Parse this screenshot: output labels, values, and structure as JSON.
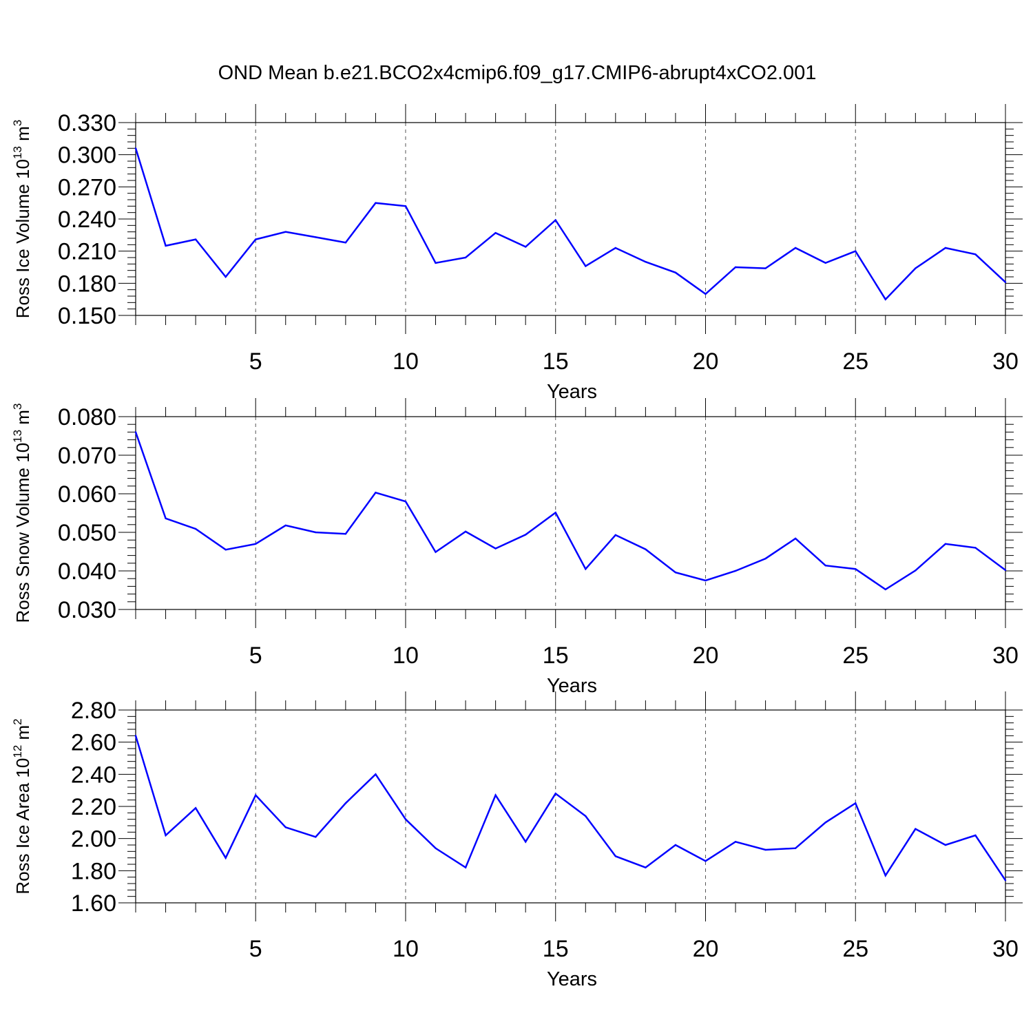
{
  "title": "OND Mean b.e21.BCO2x4cmip6.f09_g17.CMIP6-abrupt4xCO2.001",
  "chart_data": [
    {
      "type": "line",
      "title": "",
      "xlabel": "Years",
      "ylabel": {
        "text": "Ross Ice Volume 10",
        "exponent": "13",
        "unit": " m",
        "unit_exponent": "3"
      },
      "xlim": [
        1,
        30
      ],
      "ylim": [
        0.15,
        0.33
      ],
      "xticks": [
        "5",
        "10",
        "15",
        "20",
        "25",
        "30"
      ],
      "yticks": [
        "0.150",
        "0.180",
        "0.210",
        "0.240",
        "0.270",
        "0.300",
        "0.330"
      ],
      "grid": "vertical dashed at major x ticks",
      "color": "#0000ff",
      "x": [
        1,
        2,
        3,
        4,
        5,
        6,
        7,
        8,
        9,
        10,
        11,
        12,
        13,
        14,
        15,
        16,
        17,
        18,
        19,
        20,
        21,
        22,
        23,
        24,
        25,
        26,
        27,
        28,
        29,
        30
      ],
      "y": [
        0.306,
        0.215,
        0.221,
        0.186,
        0.221,
        0.228,
        0.223,
        0.218,
        0.255,
        0.252,
        0.199,
        0.204,
        0.227,
        0.214,
        0.239,
        0.196,
        0.213,
        0.2,
        0.19,
        0.17,
        0.195,
        0.194,
        0.213,
        0.199,
        0.21,
        0.165,
        0.194,
        0.213,
        0.207,
        0.181
      ]
    },
    {
      "type": "line",
      "title": "",
      "xlabel": "Years",
      "ylabel": {
        "text": "Ross Snow Volume 10",
        "exponent": "13",
        "unit": " m",
        "unit_exponent": "3"
      },
      "xlim": [
        1,
        30
      ],
      "ylim": [
        0.03,
        0.08
      ],
      "xticks": [
        "5",
        "10",
        "15",
        "20",
        "25",
        "30"
      ],
      "yticks": [
        "0.030",
        "0.040",
        "0.050",
        "0.060",
        "0.070",
        "0.080"
      ],
      "grid": "vertical dashed at major x ticks",
      "color": "#0000ff",
      "x": [
        1,
        2,
        3,
        4,
        5,
        6,
        7,
        8,
        9,
        10,
        11,
        12,
        13,
        14,
        15,
        16,
        17,
        18,
        19,
        20,
        21,
        22,
        23,
        24,
        25,
        26,
        27,
        28,
        29,
        30
      ],
      "y": [
        0.076,
        0.0536,
        0.0509,
        0.0455,
        0.047,
        0.0518,
        0.05,
        0.0496,
        0.0603,
        0.058,
        0.0449,
        0.0502,
        0.0458,
        0.0494,
        0.0551,
        0.0405,
        0.0493,
        0.0456,
        0.0396,
        0.0375,
        0.04,
        0.0432,
        0.0484,
        0.0414,
        0.0405,
        0.0352,
        0.0401,
        0.047,
        0.046,
        0.0402
      ]
    },
    {
      "type": "line",
      "title": "",
      "xlabel": "Years",
      "ylabel": {
        "text": "Ross Ice Area 10",
        "exponent": "12",
        "unit": " m",
        "unit_exponent": "2"
      },
      "xlim": [
        1,
        30
      ],
      "ylim": [
        1.6,
        2.8
      ],
      "xticks": [
        "5",
        "10",
        "15",
        "20",
        "25",
        "30"
      ],
      "yticks": [
        "1.60",
        "1.80",
        "2.00",
        "2.20",
        "2.40",
        "2.60",
        "2.80"
      ],
      "grid": "vertical dashed at major x ticks",
      "color": "#0000ff",
      "x": [
        1,
        2,
        3,
        4,
        5,
        6,
        7,
        8,
        9,
        10,
        11,
        12,
        13,
        14,
        15,
        16,
        17,
        18,
        19,
        20,
        21,
        22,
        23,
        24,
        25,
        26,
        27,
        28,
        29,
        30
      ],
      "y": [
        2.64,
        2.02,
        2.19,
        1.88,
        2.27,
        2.07,
        2.01,
        2.22,
        2.4,
        2.12,
        1.94,
        1.82,
        2.27,
        1.98,
        2.28,
        2.14,
        1.89,
        1.82,
        1.96,
        1.86,
        1.98,
        1.93,
        1.94,
        2.1,
        2.22,
        1.77,
        2.06,
        1.96,
        2.02,
        1.74
      ]
    }
  ]
}
